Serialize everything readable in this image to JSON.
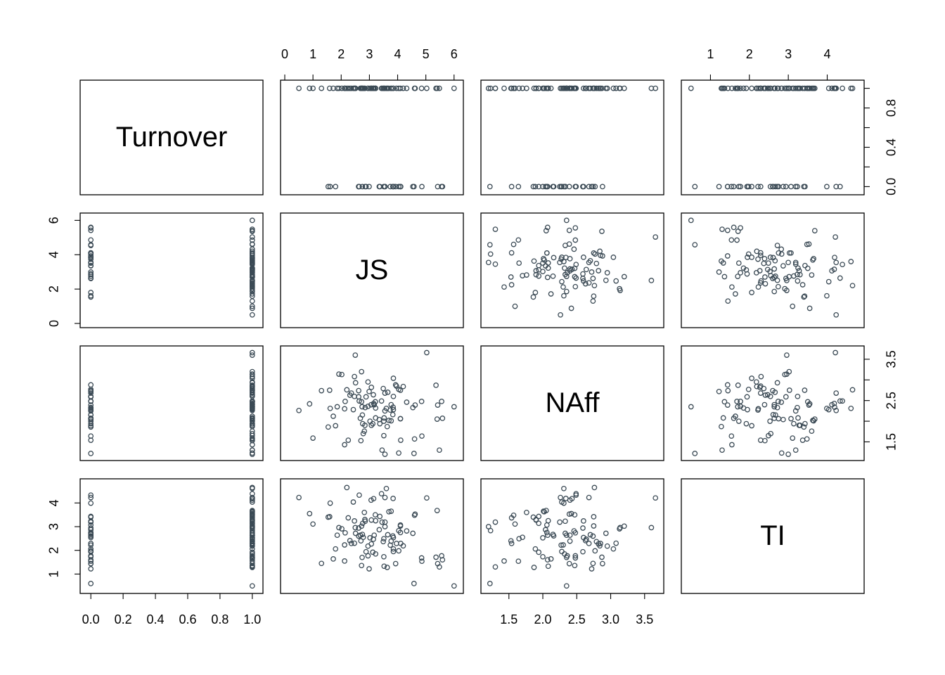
{
  "chart_data": {
    "type": "scatter",
    "variables": [
      "Turnover",
      "JS",
      "NAff",
      "TI"
    ],
    "axes": {
      "Turnover": {
        "range": [
          -0.04,
          1.04
        ],
        "ticks": [
          0.0,
          0.2,
          0.4,
          0.6,
          0.8,
          1.0
        ],
        "tick_labels": [
          "0.0",
          "0.2",
          "0.4",
          "0.6",
          "0.8",
          "1.0"
        ]
      },
      "JS": {
        "range": [
          0,
          6.18
        ],
        "ticks": [
          0,
          1,
          2,
          3,
          4,
          5,
          6
        ],
        "tick_labels": [
          "0",
          "1",
          "2",
          "3",
          "4",
          "5",
          "6"
        ],
        "left_ticks": [
          0,
          2,
          4,
          6
        ],
        "left_tick_labels": [
          "0",
          "2",
          "4",
          "6"
        ]
      },
      "NAff": {
        "range": [
          1.15,
          3.72
        ],
        "ticks": [
          1.5,
          2.0,
          2.5,
          3.0,
          3.5
        ],
        "tick_labels": [
          "1.5",
          "2.0",
          "2.5",
          "3.0",
          "3.5"
        ],
        "right_ticks": [
          1.5,
          2.0,
          2.5,
          3.0,
          3.5
        ],
        "right_tick_labels": [
          "1.5",
          "",
          "2.5",
          "",
          "3.5"
        ]
      },
      "TI": {
        "range": [
          0.36,
          4.84
        ],
        "ticks": [
          1,
          2,
          3,
          4
        ],
        "tick_labels": [
          "1",
          "2",
          "3",
          "4"
        ]
      }
    },
    "turnover_right_ticks": [
      0.0,
      0.2,
      0.4,
      0.6,
      0.8,
      1.0
    ],
    "turnover_right_tick_labels": [
      "0.0",
      "",
      "0.4",
      "",
      "0.8",
      ""
    ],
    "observations": {
      "Turnover": [
        1,
        1,
        1,
        1,
        1,
        1,
        1,
        1,
        1,
        1,
        1,
        1,
        1,
        1,
        1,
        1,
        1,
        1,
        1,
        1,
        1,
        1,
        1,
        1,
        1,
        1,
        1,
        1,
        1,
        1,
        1,
        1,
        1,
        1,
        1,
        1,
        1,
        1,
        1,
        1,
        1,
        1,
        1,
        1,
        1,
        1,
        1,
        1,
        1,
        1,
        1,
        1,
        1,
        1,
        1,
        1,
        1,
        1,
        1,
        1,
        1,
        1,
        1,
        1,
        1,
        1,
        1,
        1,
        1,
        1,
        0,
        0,
        0,
        0,
        0,
        0,
        0,
        0,
        0,
        0,
        0,
        0,
        0,
        0,
        0,
        0,
        0,
        0,
        0,
        0,
        0,
        0,
        0,
        0,
        0,
        0,
        0,
        0,
        0,
        0
      ],
      "JS": [
        2.76,
        4.1,
        3.02,
        2.36,
        0.5,
        2.95,
        4.32,
        2.47,
        2.31,
        0.88,
        3.51,
        4.2,
        1.3,
        2.25,
        1.0,
        2.5,
        2.68,
        4.6,
        3.12,
        2.7,
        4.85,
        3.96,
        2.14,
        6.0,
        3.85,
        2.72,
        2.95,
        4.04,
        3.07,
        3.6,
        1.59,
        2.47,
        3.21,
        3.69,
        3.17,
        5.36,
        3.43,
        3.55,
        3.07,
        3.77,
        3.52,
        5.4,
        5.48,
        3.49,
        3.15,
        2.72,
        3.77,
        2.12,
        1.86,
        3.65,
        2.82,
        2.43,
        5.03,
        4.62,
        3.22,
        2.2,
        3.63,
        1.92,
        2.12,
        2.78,
        1.72,
        2.51,
        2.84,
        2.74,
        3.06,
        3.84,
        3.14,
        2.02,
        3.45,
        3.22,
        4.54,
        4.86,
        3.85,
        3.37,
        3.35,
        1.54,
        3.74,
        3.55,
        3.55,
        4.1,
        1.8,
        1.61,
        3.51,
        2.62,
        2.75,
        4.58,
        2.64,
        5.42,
        4.11,
        2.62,
        3.85,
        3.93,
        5.59,
        4.1,
        2.88,
        3.83,
        5.56,
        2.99,
        2.85,
        4.04
      ],
      "NAff": [
        1.94,
        2.75,
        2.0,
        2.68,
        2.26,
        2.36,
        2.46,
        3.08,
        2.63,
        2.42,
        1.65,
        2.84,
        2.74,
        1.54,
        1.59,
        3.6,
        2.07,
        1.57,
        1.94,
        1.53,
        2.48,
        2.85,
        2.48,
        2.35,
        3.04,
        2.47,
        2.95,
        1.23,
        2.82,
        2.31,
        2.75,
        2.6,
        2.47,
        2.02,
        2.4,
        2.87,
        2.49,
        1.2,
        1.9,
        2.4,
        2.08,
        2.05,
        1.3,
        2.79,
        2.43,
        3.2,
        2.01,
        2.3,
        2.35,
        2.7,
        1.76,
        2.28,
        3.66,
        2.39,
        2.08,
        2.76,
        1.87,
        3.14,
        1.43,
        1.7,
        2.12,
        2.93,
        1.9,
        2.35,
        2.4,
        2.34,
        2.64,
        3.13,
        1.3,
        2.32,
        2.33,
        1.64,
        2.28,
        1.94,
        2.04,
        1.86,
        2.27,
        2.68,
        2.25,
        2.06,
        1.89,
        2.31,
        2.0,
        2.59,
        2.15,
        1.22,
        2.49,
        2.39,
        1.54,
        2.74,
        2.6,
        2.88,
        2.07,
        2.06,
        2.59,
        2.16,
        2.48,
        2.72,
        2.33,
        2.77
      ],
      "TI": [
        3.14,
        3.03,
        2.53,
        2.29,
        4.23,
        1.77,
        2.82,
        2.3,
        2.41,
        3.55,
        2.49,
        2.19,
        1.45,
        3.37,
        3.11,
        2.96,
        2.64,
        3.48,
        1.92,
        2.4,
        1.68,
        2.29,
        2.74,
        0.5,
        2.06,
        1.36,
        2.18,
        2.83,
        2.27,
        4.61,
        3.42,
        3.24,
        3.5,
        3.63,
        2.64,
        1.71,
        4.39,
        3.0,
        3.28,
        2.39,
        1.33,
        3.68,
        1.3,
        2.37,
        4.18,
        3.02,
        3.65,
        2.23,
        2.64,
        2.66,
        3.6,
        4.04,
        4.21,
        3.53,
        3.25,
        4.65,
        1.28,
        2.96,
        1.55,
        2.55,
        1.64,
        2.72,
        3.3,
        1.7,
        4.12,
        4.19,
        2.47,
        2.91,
        3.19,
        1.85,
        2.72,
        1.54,
        1.95,
        3.43,
        2.87,
        3.4,
        2.22,
        4.23,
        3.19,
        2.75,
        2.06,
        3.99,
        1.73,
        2.94,
        2.67,
        0.6,
        4.33,
        1.44,
        2.29,
        2.6,
        2.54,
        1.44,
        1.6,
        3.07,
        1.94,
        2.61,
        1.77,
        1.22,
        3.23,
        1.98
      ]
    }
  }
}
